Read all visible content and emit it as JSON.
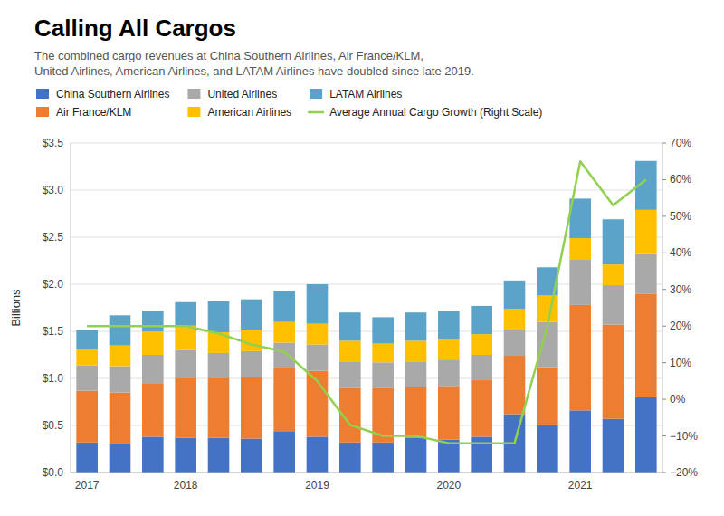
{
  "chart_data": {
    "type": "bar",
    "stacked": true,
    "title": "Calling All Cargos",
    "subtitle": "The combined cargo revenues at China Southern Airlines, Air France/KLM,\nUnited Airlines, American Airlines, and LATAM Airlines have doubled since late 2019.",
    "y_label": "Billions",
    "categories": [
      "2017",
      null,
      null,
      "2018",
      null,
      null,
      null,
      "2019",
      null,
      null,
      null,
      "2020",
      null,
      null,
      null,
      "2021",
      null,
      null
    ],
    "series": [
      {
        "name": "China Southern Airlines",
        "color": "#4472C4",
        "values": [
          0.32,
          0.3,
          0.38,
          0.37,
          0.37,
          0.36,
          0.44,
          0.38,
          0.32,
          0.32,
          0.37,
          0.35,
          0.38,
          0.62,
          0.5,
          0.66,
          0.57,
          0.8
        ]
      },
      {
        "name": "Air France/KLM",
        "color": "#ED7D31",
        "values": [
          0.55,
          0.55,
          0.57,
          0.63,
          0.63,
          0.65,
          0.67,
          0.7,
          0.58,
          0.58,
          0.54,
          0.57,
          0.6,
          0.62,
          0.62,
          1.12,
          1.0,
          1.1
        ]
      },
      {
        "name": "United Airlines",
        "color": "#A9A9A9",
        "values": [
          0.27,
          0.28,
          0.3,
          0.3,
          0.27,
          0.28,
          0.27,
          0.28,
          0.28,
          0.27,
          0.27,
          0.28,
          0.27,
          0.28,
          0.48,
          0.48,
          0.42,
          0.42
        ]
      },
      {
        "name": "American Airlines",
        "color": "#FFC000",
        "values": [
          0.17,
          0.22,
          0.25,
          0.26,
          0.22,
          0.22,
          0.22,
          0.22,
          0.22,
          0.2,
          0.22,
          0.22,
          0.22,
          0.22,
          0.28,
          0.23,
          0.22,
          0.47
        ]
      },
      {
        "name": "LATAM Airlines",
        "color": "#5BA3C9",
        "values": [
          0.2,
          0.32,
          0.22,
          0.25,
          0.33,
          0.33,
          0.33,
          0.42,
          0.3,
          0.28,
          0.3,
          0.3,
          0.3,
          0.3,
          0.3,
          0.42,
          0.48,
          0.52
        ]
      },
      {
        "name": "Average Annual Cargo Growth (Right Scale)",
        "type": "line",
        "axis": "y2",
        "color": "#92D050",
        "values": [
          0.2,
          0.2,
          0.2,
          0.2,
          0.18,
          0.15,
          0.13,
          0.05,
          -0.07,
          -0.1,
          -0.1,
          -0.12,
          -0.12,
          -0.12,
          0.2,
          0.65,
          0.53,
          0.6
        ]
      }
    ],
    "ylim": [
      0,
      3.5
    ],
    "yticks": [
      {
        "value": 0,
        "label": "$0.0"
      },
      {
        "value": 0.5,
        "label": "$0.5"
      },
      {
        "value": 1,
        "label": "$1.0"
      },
      {
        "value": 1.5,
        "label": "$1.5"
      },
      {
        "value": 2,
        "label": "$2.0"
      },
      {
        "value": 2.5,
        "label": "$2.5"
      },
      {
        "value": 3,
        "label": "$3.0"
      },
      {
        "value": 3.5,
        "label": "$3.5"
      }
    ],
    "y2lim": [
      -0.2,
      0.7
    ],
    "y2ticks": [
      {
        "value": -0.2,
        "label": "−20%"
      },
      {
        "value": -0.1,
        "label": "−10%"
      },
      {
        "value": 0,
        "label": "0%"
      },
      {
        "value": 0.1,
        "label": "10%"
      },
      {
        "value": 0.2,
        "label": "20%"
      },
      {
        "value": 0.3,
        "label": "30%"
      },
      {
        "value": 0.4,
        "label": "40%"
      },
      {
        "value": 0.5,
        "label": "50%"
      },
      {
        "value": 0.6,
        "label": "60%"
      },
      {
        "value": 0.7,
        "label": "70%"
      }
    ],
    "grid": true,
    "legend": "top"
  }
}
